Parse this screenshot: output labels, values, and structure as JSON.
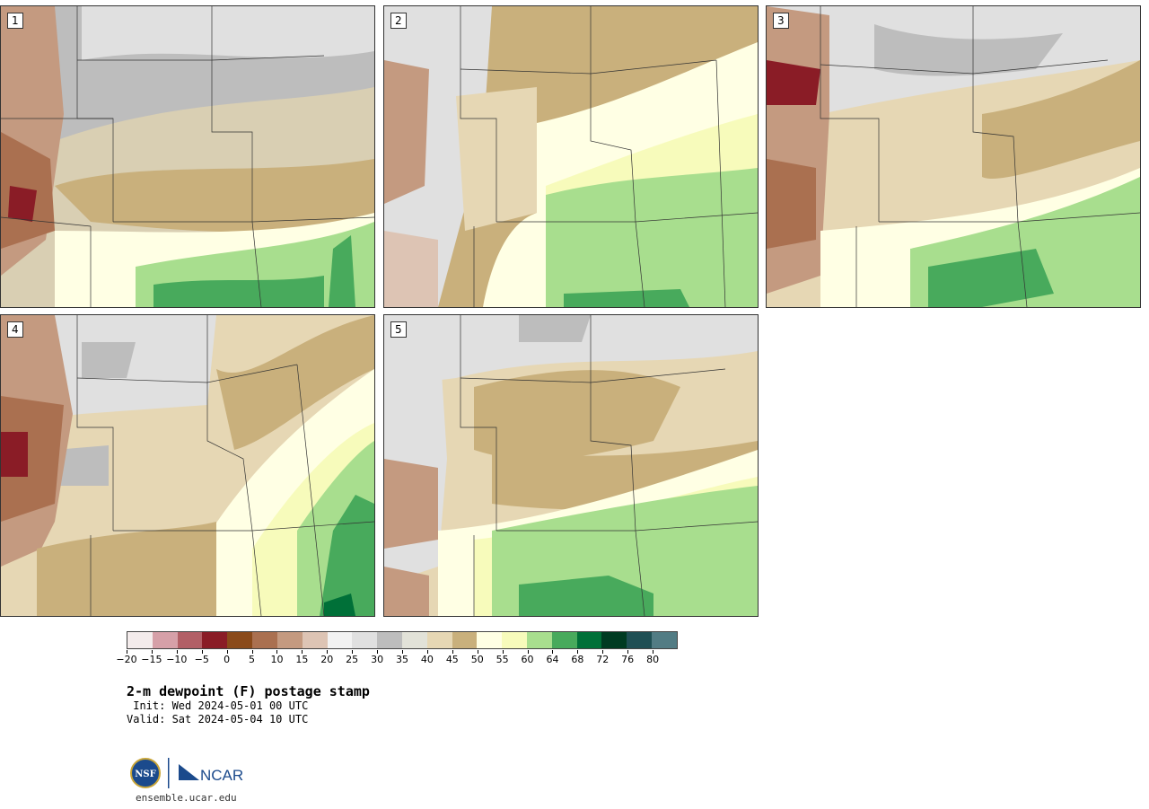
{
  "panels": [
    {
      "label": "1"
    },
    {
      "label": "2"
    },
    {
      "label": "3"
    },
    {
      "label": "4"
    },
    {
      "label": "5"
    }
  ],
  "colorbar": {
    "colors": [
      "#f4ecec",
      "#d6a0a8",
      "#b25f66",
      "#8a1c26",
      "#8a4a1a",
      "#aa7050",
      "#c49a80",
      "#ddc4b4",
      "#f2f2f2",
      "#e0e0e0",
      "#bdbdbd",
      "#e2e2d8",
      "#e6d7b4",
      "#c9b07c",
      "#ffffe4",
      "#f7fbbb",
      "#a8de8e",
      "#48aa5c",
      "#007038",
      "#003b22",
      "#1f4f54",
      "#527c84"
    ],
    "ticks": [
      "-20",
      "-15",
      "-10",
      "-5",
      "0",
      "5",
      "10",
      "15",
      "20",
      "25",
      "30",
      "35",
      "40",
      "45",
      "50",
      "55",
      "60",
      "64",
      "68",
      "72",
      "76",
      "80"
    ]
  },
  "title": "2-m dewpoint (F) postage stamp",
  "init": " Init: Wed 2024-05-01 00 UTC",
  "valid": "Valid: Sat 2024-05-04 10 UTC",
  "footer": {
    "logo_left": "NSF",
    "logo_right": "NCAR",
    "site": "ensemble.ucar.edu"
  }
}
